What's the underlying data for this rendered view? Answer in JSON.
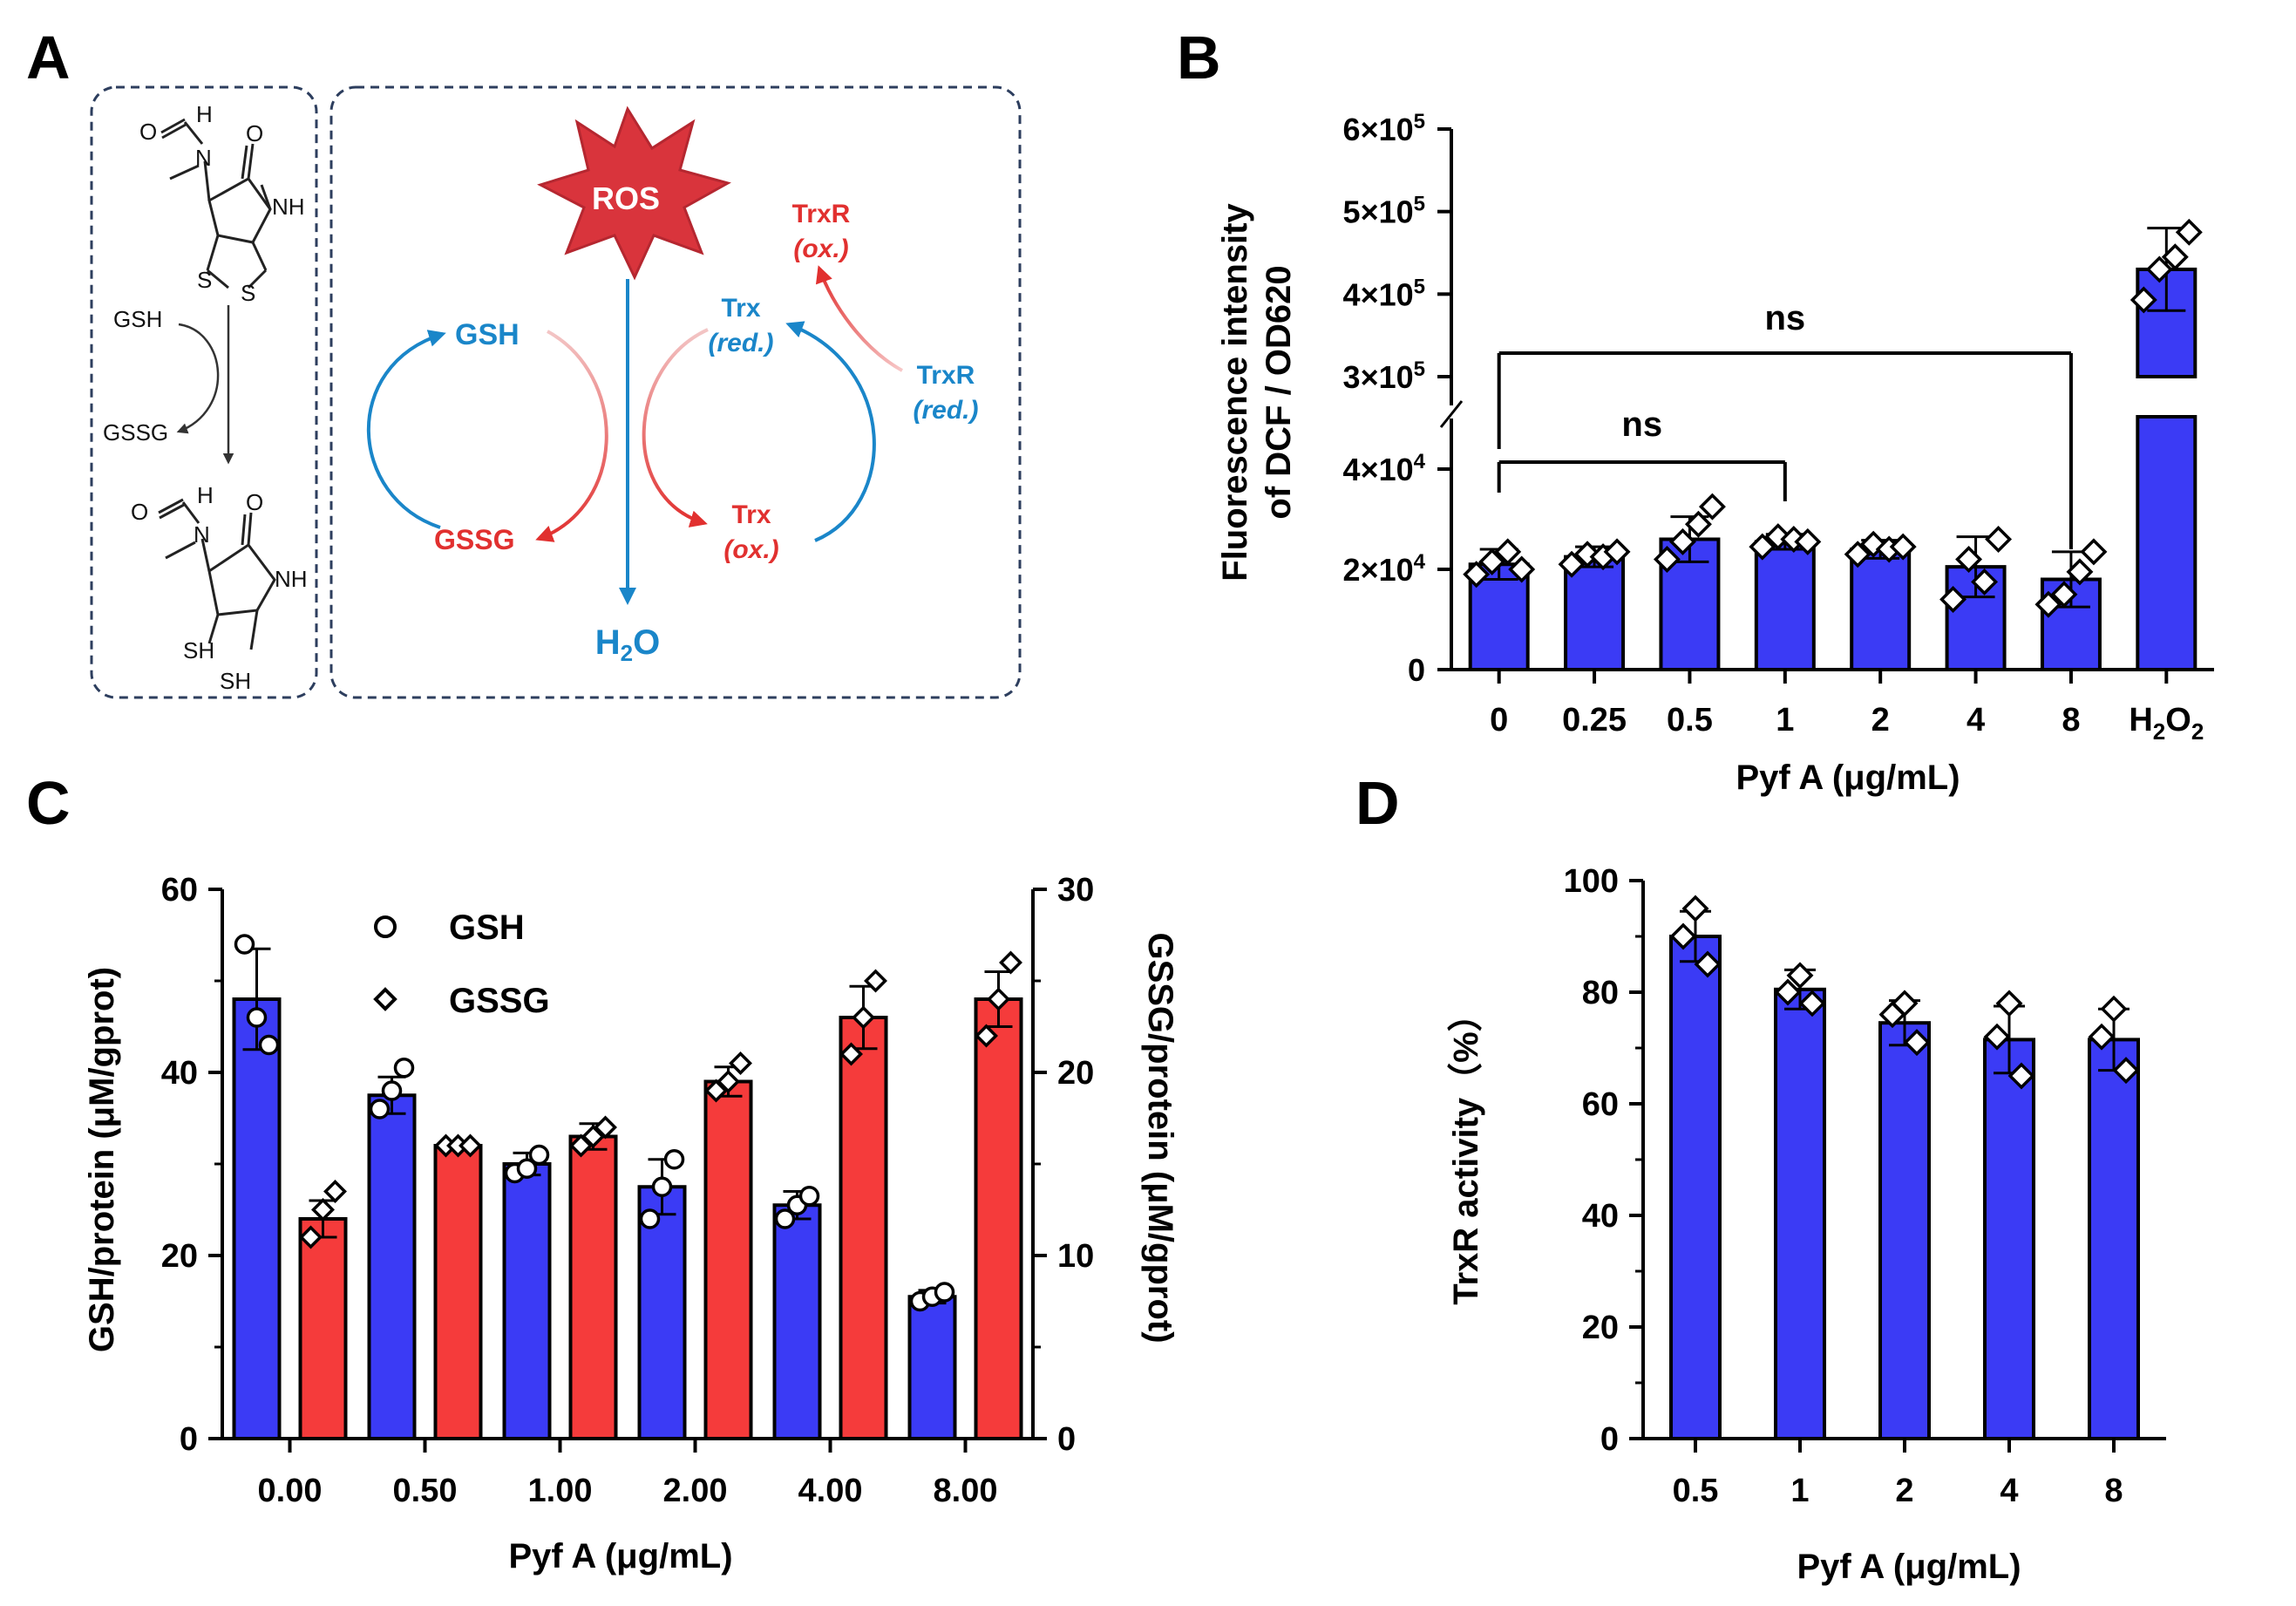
{
  "panel_labels": [
    "A",
    "B",
    "C",
    "D"
  ],
  "colors": {
    "blue_bar": "#3b3bf5",
    "red_bar": "#f53b3b",
    "ros": "#d9343c",
    "reduced": "#1a86c9",
    "oxidized": "#e1302f",
    "box_border": "#2d3e5e"
  },
  "panel_a": {
    "chem_labels": {
      "h": "H",
      "o": "O",
      "n": "N",
      "nh": "NH",
      "s": "S",
      "sh": "SH",
      "gsh": "GSH",
      "gssg": "GSSG"
    },
    "ros": "ROS",
    "gsh": "GSH",
    "gssg": "GSSG",
    "trx": "Trx",
    "trxr": "TrxR",
    "red": "red.",
    "ox": "ox.",
    "water": "H",
    "water_sub": "2",
    "water_o": "O"
  },
  "chart_data": [
    {
      "panel": "B",
      "type": "bar",
      "categories": [
        "0",
        "0.25",
        "0.5",
        "1",
        "2",
        "4",
        "8",
        "H2O2"
      ],
      "values": [
        21000,
        22500,
        26000,
        25500,
        24000,
        20500,
        18000,
        430000
      ],
      "errors": [
        3000,
        2000,
        4500,
        1500,
        1800,
        6000,
        5500,
        50000
      ],
      "points": [
        [
          19000,
          21500,
          23500,
          20000
        ],
        [
          21000,
          23000,
          22500,
          23500
        ],
        [
          22000,
          25500,
          29000,
          32500
        ],
        [
          24500,
          26500,
          26000,
          25500
        ],
        [
          23000,
          25000,
          24000,
          24500
        ],
        [
          14000,
          22000,
          17500,
          26000
        ],
        [
          13000,
          15000,
          19500,
          23500
        ],
        [
          393000,
          430000,
          445000,
          475000
        ]
      ],
      "xlabel": "Pyf A (μg/mL)",
      "xlabel_parts": {
        "h": "H",
        "sub2": "2",
        "o": "O"
      },
      "ylabel": [
        "Fluorescence intensity",
        "of DCF / OD620"
      ],
      "y_ticks_lower": [
        "0",
        "2×10",
        "4×10"
      ],
      "y_ticks_lower_exp": [
        "",
        "4",
        "4"
      ],
      "y_ticks_upper": [
        "3×10",
        "4×10",
        "5×10",
        "6×10"
      ],
      "y_ticks_upper_exp": [
        "5",
        "5",
        "5",
        "5"
      ],
      "ylim_lower": [
        0,
        40000
      ],
      "ylim_upper": [
        300000,
        600000
      ],
      "broken_axis": true,
      "annotations": [
        "ns",
        "ns"
      ]
    },
    {
      "panel": "C",
      "type": "bar",
      "categories": [
        "0.00",
        "0.50",
        "1.00",
        "2.00",
        "4.00",
        "8.00"
      ],
      "series": [
        {
          "name": "GSH",
          "axis": "left",
          "values": [
            48,
            37.5,
            30,
            27.5,
            25.5,
            15.5
          ],
          "errors": [
            5.5,
            2,
            1.2,
            3,
            1.5,
            0.7
          ],
          "points": [
            [
              54,
              46,
              43
            ],
            [
              36,
              38,
              40.5
            ],
            [
              29,
              29.5,
              31
            ],
            [
              24,
              27.5,
              30.5
            ],
            [
              24,
              25.5,
              26.5
            ],
            [
              15,
              15.5,
              16
            ]
          ]
        },
        {
          "name": "GSSG",
          "axis": "right",
          "values": [
            12,
            16,
            16.5,
            19.5,
            23,
            24
          ],
          "errors": [
            1,
            0.2,
            0.7,
            0.8,
            1.7,
            1.5
          ],
          "points": [
            [
              11,
              12.5,
              13.5
            ],
            [
              16,
              16,
              16
            ],
            [
              16,
              16.5,
              17
            ],
            [
              19,
              19.5,
              20.5
            ],
            [
              21,
              23,
              25
            ],
            [
              22,
              24,
              26
            ]
          ]
        }
      ],
      "xlabel": "Pyf A (μg/mL)",
      "ylabel": "GSH/protein (μM/gprot)",
      "ylabel_right": "GSSG/protein (μM/gprot)",
      "ylim": [
        0,
        60
      ],
      "ylim_right": [
        0,
        30
      ],
      "y_ticks": [
        "0",
        "20",
        "40",
        "60"
      ],
      "y_ticks_right": [
        "0",
        "10",
        "20",
        "30"
      ],
      "legend": [
        "GSH",
        "GSSG"
      ]
    },
    {
      "panel": "D",
      "type": "bar",
      "categories": [
        "0.5",
        "1",
        "2",
        "4",
        "8"
      ],
      "values": [
        90,
        80.5,
        74.5,
        71.5,
        71.5
      ],
      "errors": [
        4.5,
        3.5,
        4,
        6,
        5.5
      ],
      "points": [
        [
          95,
          90,
          85
        ],
        [
          83,
          80,
          78
        ],
        [
          78,
          76,
          71
        ],
        [
          78,
          72,
          65
        ],
        [
          77,
          72,
          66
        ]
      ],
      "xlabel": "Pyf A (μg/mL)",
      "ylabel": "TrxR activity（%）",
      "ylim": [
        0,
        100
      ],
      "y_ticks": [
        "0",
        "20",
        "40",
        "60",
        "80",
        "100"
      ]
    }
  ]
}
